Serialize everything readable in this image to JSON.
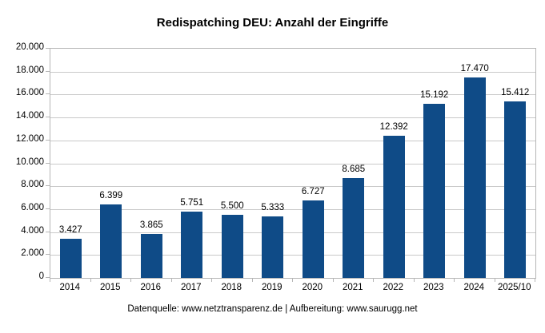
{
  "title": "Redispatching DEU: Anzahl der Eingriffe",
  "footer": "Datenquelle: www.netztransparenz.de | Aufbereitung: www.saurugg.net",
  "chart_data": {
    "type": "bar",
    "title": "Redispatching DEU: Anzahl der Eingriffe",
    "categories": [
      "2014",
      "2015",
      "2016",
      "2017",
      "2018",
      "2019",
      "2020",
      "2021",
      "2022",
      "2023",
      "2024",
      "2025/10"
    ],
    "values": [
      3427,
      6399,
      3865,
      5751,
      5500,
      5333,
      6727,
      8685,
      12392,
      15192,
      17470,
      15412
    ],
    "value_labels": [
      "3.427",
      "6.399",
      "3.865",
      "5.751",
      "5.500",
      "5.333",
      "6.727",
      "8.685",
      "12.392",
      "15.192",
      "17.470",
      "15.412"
    ],
    "xlabel": "",
    "ylabel": "",
    "ylim": [
      0,
      20000
    ],
    "y_tick_interval": 2000,
    "y_tick_labels": [
      "0",
      "2.000",
      "4.000",
      "6.000",
      "8.000",
      "10.000",
      "12.000",
      "14.000",
      "16.000",
      "18.000",
      "20.000"
    ],
    "grid": true,
    "legend_position": "none",
    "bar_color": "#0F4B87",
    "grid_color": "#C9C9C9",
    "axis_color": "#B6B6B6",
    "label_color": "#000000"
  }
}
